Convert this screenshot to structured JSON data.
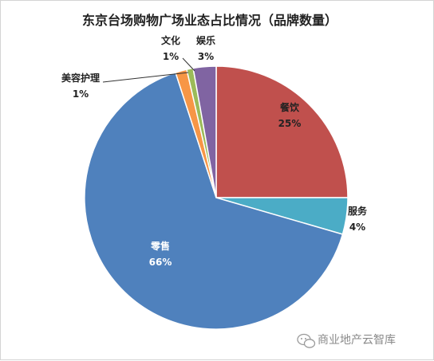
{
  "chart_data": {
    "type": "pie",
    "title": "东京台场购物广场业态占比情况（品牌数量）",
    "slices": [
      {
        "name": "餐饮",
        "percent_label": "25%",
        "value": 25,
        "color": "#c0504d"
      },
      {
        "name": "服务",
        "percent_label": "4%",
        "value": 4.5,
        "color": "#4bacc6"
      },
      {
        "name": "零售",
        "percent_label": "66%",
        "value": 65.5,
        "color": "#4f81bd"
      },
      {
        "name": "美容护理",
        "percent_label": "1%",
        "value": 1.4,
        "color": "#f79646"
      },
      {
        "name": "文化",
        "percent_label": "1%",
        "value": 0.8,
        "color": "#9bbb59"
      },
      {
        "name": "娱乐",
        "percent_label": "3%",
        "value": 2.8,
        "color": "#8064a2"
      }
    ]
  },
  "watermark": {
    "icon": "wechat-icon",
    "text": "商业地产云智库"
  }
}
